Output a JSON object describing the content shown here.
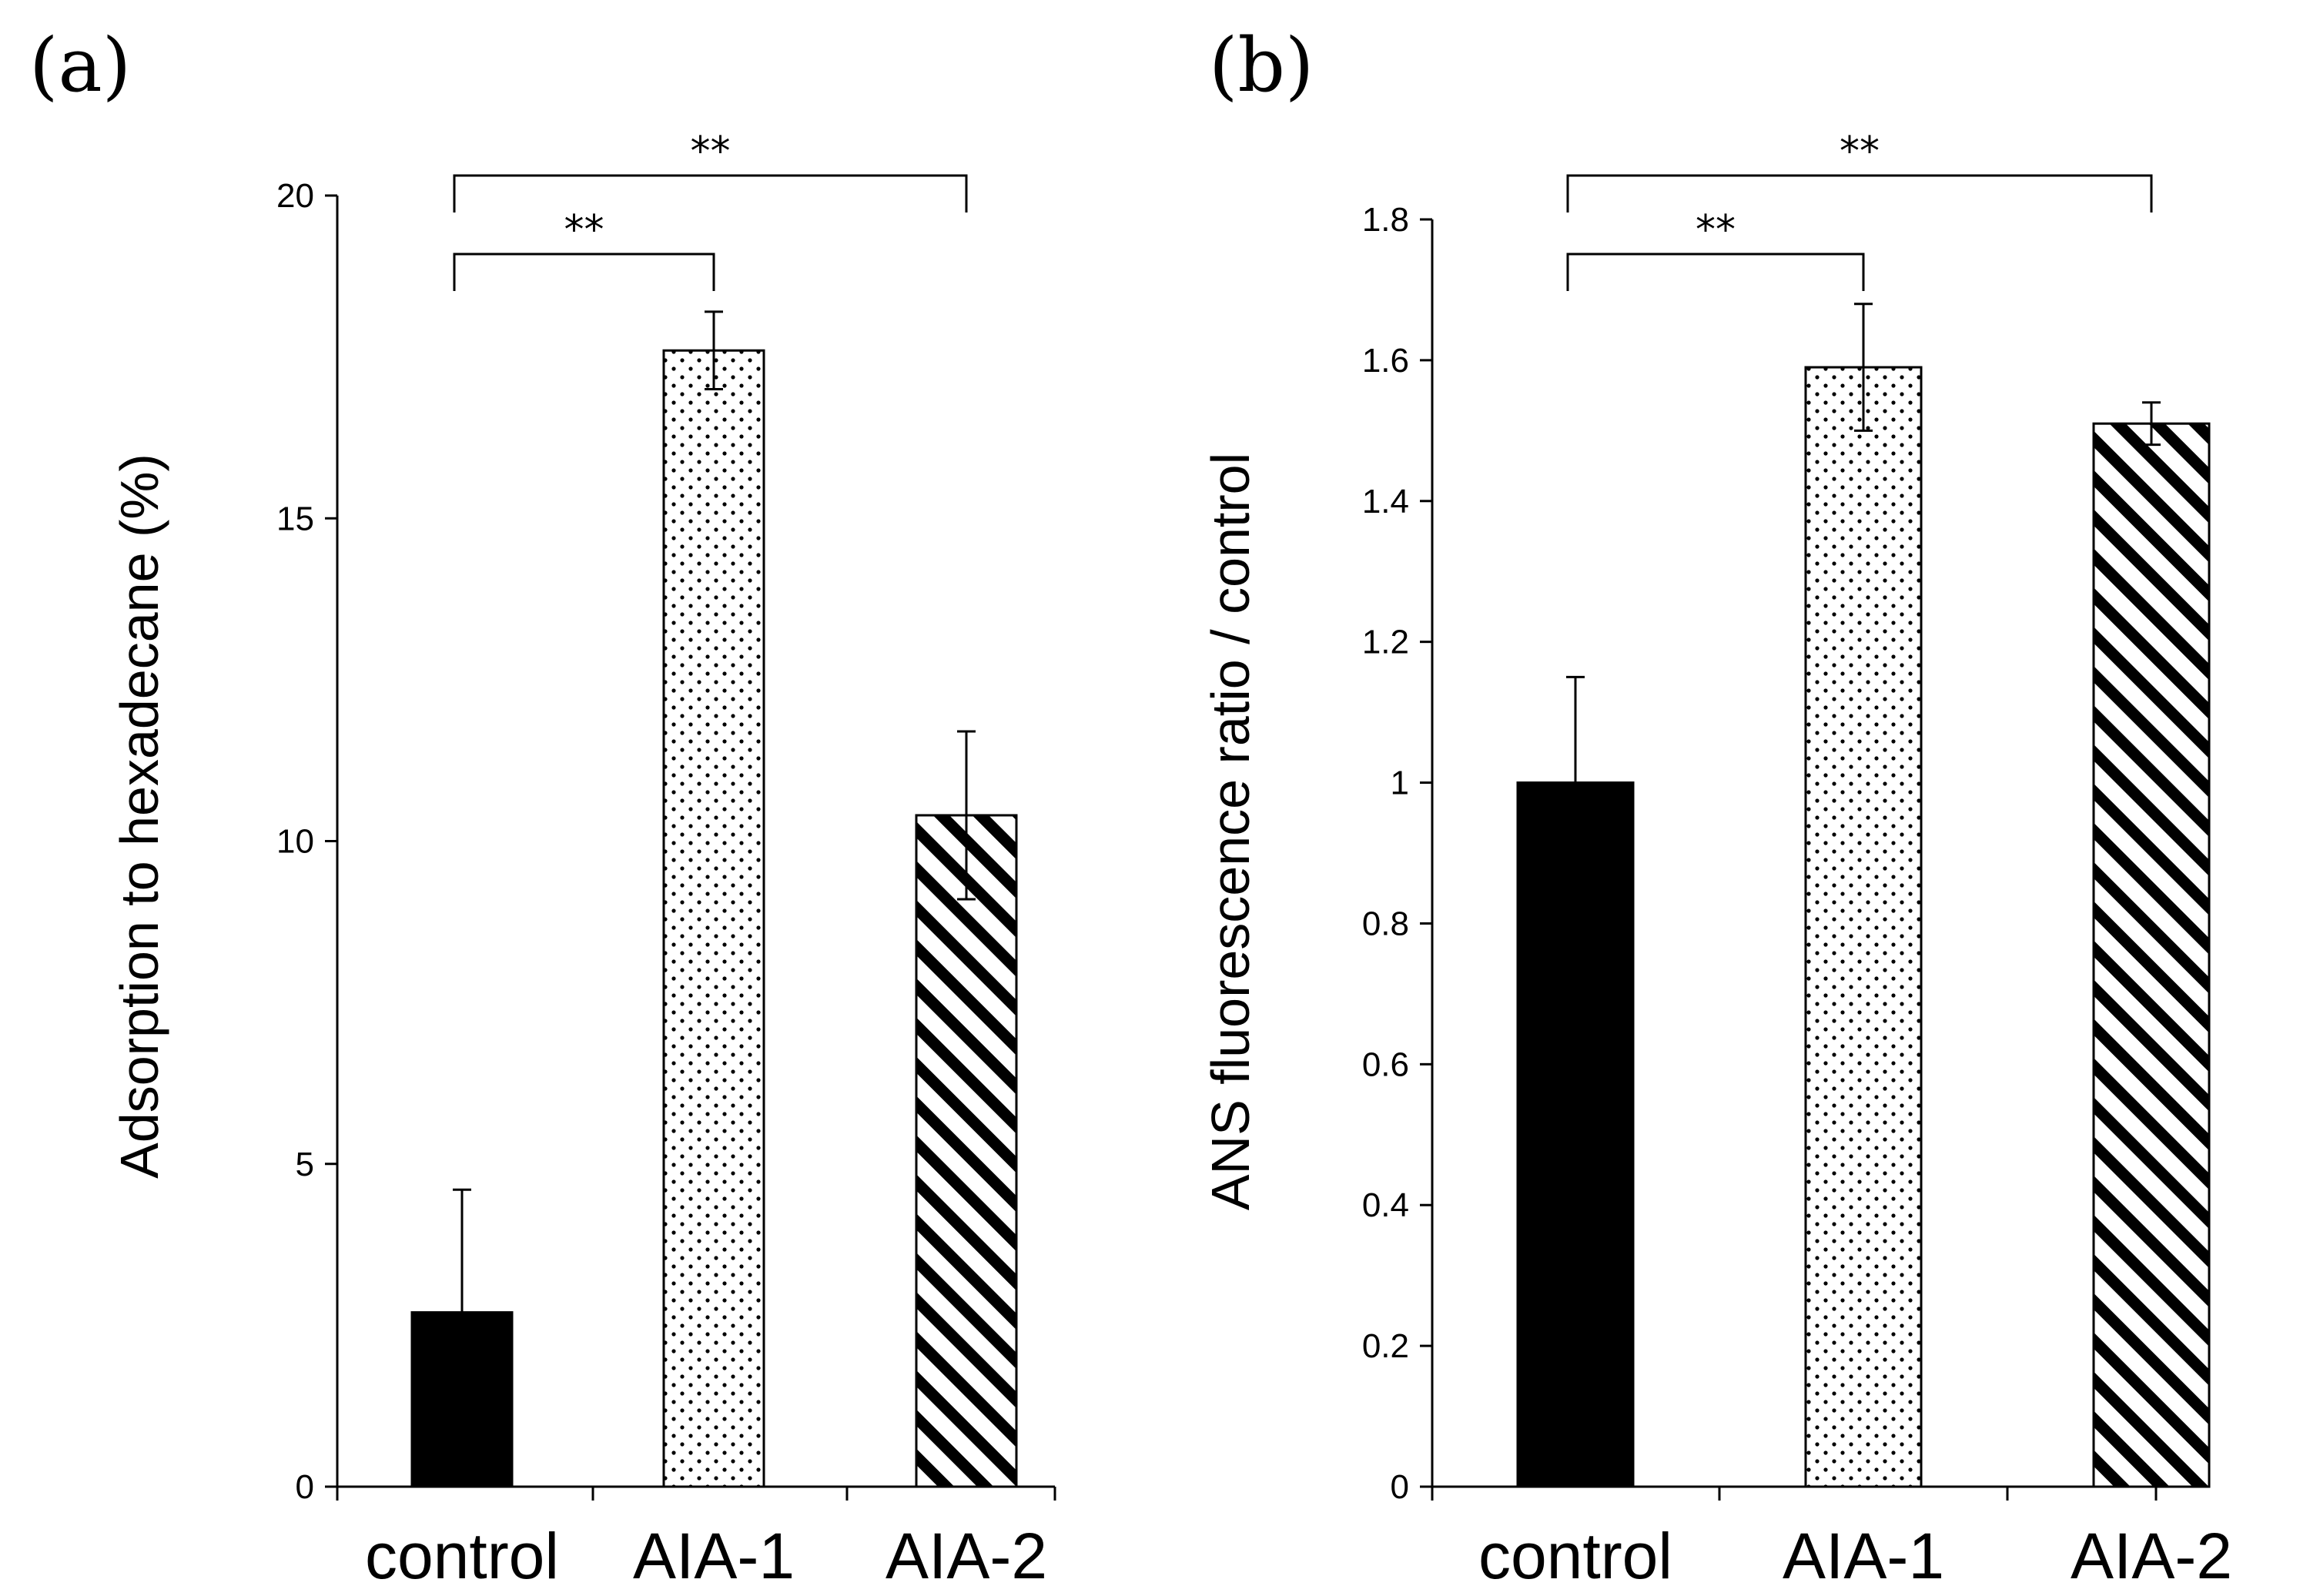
{
  "chart_data": [
    {
      "type": "bar",
      "panel": "(a)",
      "categories": [
        "control",
        "AIA-1",
        "AIA-2"
      ],
      "values": [
        2.7,
        17.6,
        10.4
      ],
      "errors": [
        1.9,
        0.6,
        1.3
      ],
      "patterns": [
        "solid",
        "dots",
        "stripes"
      ],
      "ylabel": "Adsorption to hexadecane (%)",
      "ylim": [
        0,
        20
      ],
      "yticks": [
        0,
        5,
        10,
        15,
        20
      ],
      "significance": [
        {
          "from": 0,
          "to": 1,
          "label": "**"
        },
        {
          "from": 0,
          "to": 2,
          "label": "**"
        }
      ]
    },
    {
      "type": "bar",
      "panel": "(b)",
      "categories": [
        "control",
        "AIA-1",
        "AIA-2"
      ],
      "values": [
        1.0,
        1.59,
        1.51
      ],
      "errors": [
        0.15,
        0.09,
        0.03
      ],
      "patterns": [
        "solid",
        "dots",
        "stripes"
      ],
      "ylabel": "ANS fluorescence ratio / control",
      "ylim": [
        0,
        1.8
      ],
      "yticks": [
        "0",
        "0.2",
        "0.4",
        "0.6",
        "0.8",
        "1",
        "1.2",
        "1.4",
        "1.6",
        "1.8"
      ],
      "significance": [
        {
          "from": 0,
          "to": 1,
          "label": "**"
        },
        {
          "from": 0,
          "to": 2,
          "label": "**"
        }
      ]
    }
  ]
}
